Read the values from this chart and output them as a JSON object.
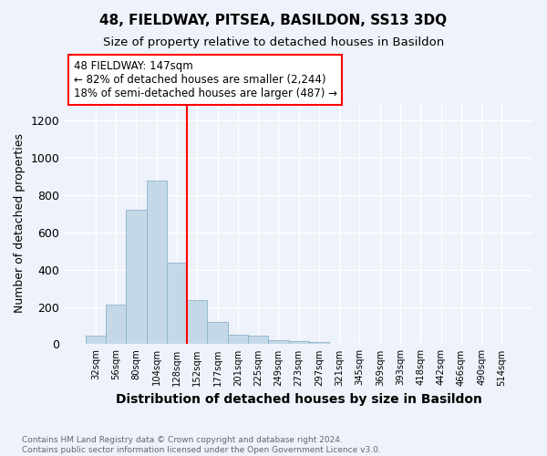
{
  "title": "48, FIELDWAY, PITSEA, BASILDON, SS13 3DQ",
  "subtitle": "Size of property relative to detached houses in Basildon",
  "xlabel": "Distribution of detached houses by size in Basildon",
  "ylabel": "Number of detached properties",
  "footnote": "Contains HM Land Registry data © Crown copyright and database right 2024.\nContains public sector information licensed under the Open Government Licence v3.0.",
  "bin_labels": [
    "32sqm",
    "56sqm",
    "80sqm",
    "104sqm",
    "128sqm",
    "152sqm",
    "177sqm",
    "201sqm",
    "225sqm",
    "249sqm",
    "273sqm",
    "297sqm",
    "321sqm",
    "345sqm",
    "369sqm",
    "393sqm",
    "418sqm",
    "442sqm",
    "466sqm",
    "490sqm",
    "514sqm"
  ],
  "bar_values": [
    45,
    215,
    720,
    880,
    440,
    235,
    120,
    50,
    45,
    20,
    18,
    10,
    0,
    0,
    0,
    0,
    0,
    0,
    0,
    0,
    0
  ],
  "bar_color": "#c5d8e8",
  "bar_edgecolor": "#88b4cc",
  "vline_x": 5.0,
  "vline_color": "red",
  "annotation_text": "48 FIELDWAY: 147sqm\n← 82% of detached houses are smaller (2,244)\n18% of semi-detached houses are larger (487) →",
  "ylim": [
    0,
    1300
  ],
  "yticks": [
    0,
    200,
    400,
    600,
    800,
    1000,
    1200
  ],
  "bg_color": "#eef2fa",
  "grid_color": "#ffffff",
  "title_fontsize": 11,
  "subtitle_fontsize": 9.5
}
